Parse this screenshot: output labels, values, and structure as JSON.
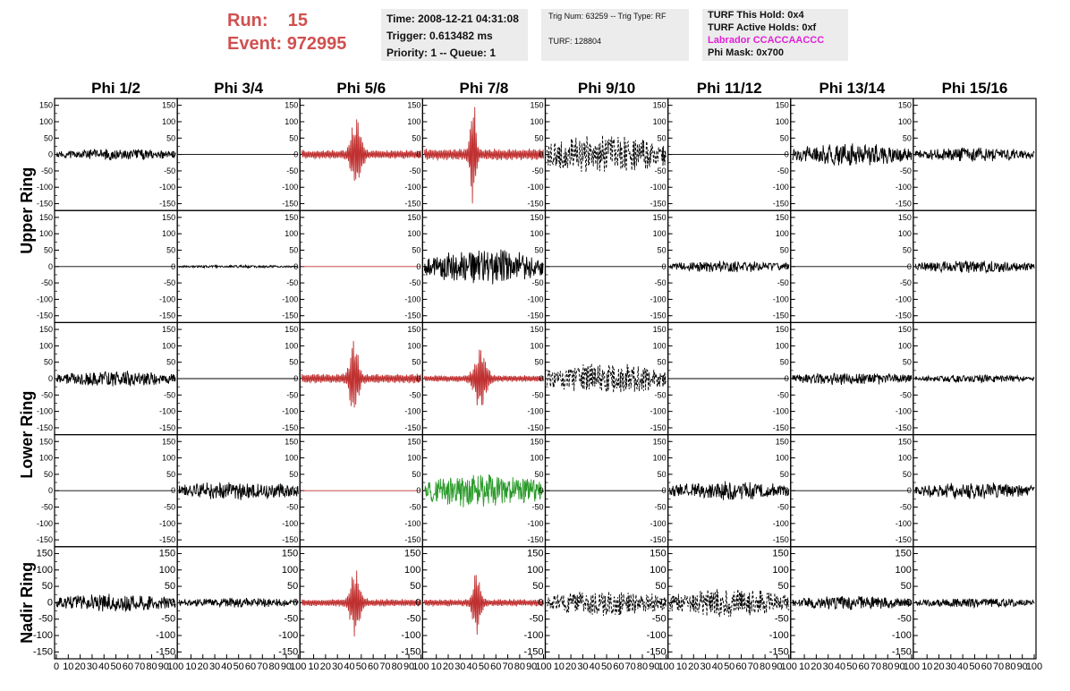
{
  "run": {
    "run_label": "Run:",
    "run_value": "15",
    "event_label": "Event:",
    "event_value": "972995"
  },
  "info1": {
    "time": "Time: 2008-12-21 04:31:08",
    "trigger": "Trigger: 0.613482 ms",
    "priority": "Priority: 1 -- Queue: 1"
  },
  "info2": {
    "trig": "Trig Num: 63259 -- Trig Type: RF",
    "turf": "TURF: 128804"
  },
  "info3": {
    "hold": "TURF This Hold: 0x4",
    "active": "TURF Active Holds: 0xf",
    "labrador": "Labrador CCACCAACCC",
    "phimask": "Phi Mask: 0x700"
  },
  "colors": {
    "red": "#c03030",
    "green": "#2a9a2a",
    "black": "#000000",
    "title_red": "#d05050",
    "magenta": "#e020d8",
    "info_bg": "#ececec"
  },
  "chart_data": {
    "type": "line",
    "columns": [
      "Phi 1/2",
      "Phi 3/4",
      "Phi 5/6",
      "Phi 7/8",
      "Phi 9/10",
      "Phi 11/12",
      "Phi 13/14",
      "Phi 15/16"
    ],
    "ring_labels": [
      {
        "text": "Upper Ring",
        "rows": [
          0,
          1
        ]
      },
      {
        "text": "Lower Ring",
        "rows": [
          2,
          3
        ]
      },
      {
        "text": "Nadir Ring",
        "rows": [
          4
        ]
      }
    ],
    "yticks": [
      -150,
      -100,
      -50,
      0,
      50,
      100,
      150
    ],
    "ytick_labels": [
      "-150",
      "-100",
      "-50",
      "0",
      "50",
      "100",
      "150"
    ],
    "ylim": [
      -160,
      160
    ],
    "xlim": [
      0,
      100
    ],
    "xtick_labels": [
      "0",
      "10",
      "20",
      "30",
      "40",
      "50",
      "60",
      "70",
      "80",
      "90",
      "100"
    ],
    "grid": false,
    "traces": [
      [
        {
          "color": "black",
          "style": "solid",
          "kind": "noise",
          "amp": 18,
          "seed": 11
        },
        {
          "color": "black",
          "style": "solid",
          "kind": "flat",
          "amp": 0,
          "seed": 12
        },
        {
          "color": "red",
          "style": "solid",
          "kind": "pulse",
          "amp": 120,
          "center": 46,
          "width": 5,
          "seed": 13
        },
        {
          "color": "red",
          "style": "solid",
          "kind": "pulse",
          "amp": 155,
          "center": 41,
          "width": 3,
          "seed": 14
        },
        {
          "color": "black",
          "style": "dashed",
          "kind": "noise",
          "amp": 60,
          "seed": 15
        },
        {
          "color": "black",
          "style": "solid",
          "kind": "flat",
          "amp": 0,
          "seed": 16
        },
        {
          "color": "black",
          "style": "solid",
          "kind": "noise",
          "amp": 35,
          "seed": 17
        },
        {
          "color": "black",
          "style": "solid",
          "kind": "noise",
          "amp": 22,
          "seed": 18
        }
      ],
      [
        {
          "color": "black",
          "style": "solid",
          "kind": "flat",
          "amp": 0,
          "seed": 21
        },
        {
          "color": "black",
          "style": "solid",
          "kind": "noise",
          "amp": 4,
          "seed": 22
        },
        {
          "color": "red",
          "style": "solid",
          "kind": "flat",
          "amp": 0,
          "seed": 23
        },
        {
          "color": "black",
          "style": "solid",
          "kind": "noise",
          "amp": 55,
          "seed": 24
        },
        {
          "color": "black",
          "style": "solid",
          "kind": "flat",
          "amp": 0,
          "seed": 25
        },
        {
          "color": "black",
          "style": "solid",
          "kind": "noise",
          "amp": 18,
          "seed": 26
        },
        {
          "color": "black",
          "style": "solid",
          "kind": "flat",
          "amp": 0,
          "seed": 27
        },
        {
          "color": "black",
          "style": "solid",
          "kind": "noise",
          "amp": 20,
          "seed": 28
        }
      ],
      [
        {
          "color": "black",
          "style": "solid",
          "kind": "noise",
          "amp": 25,
          "seed": 31
        },
        {
          "color": "black",
          "style": "solid",
          "kind": "flat",
          "amp": 0,
          "seed": 32
        },
        {
          "color": "red",
          "style": "solid",
          "kind": "pulse",
          "amp": 130,
          "center": 44,
          "width": 4,
          "seed": 33
        },
        {
          "color": "red",
          "style": "solid",
          "kind": "pulse",
          "amp": 90,
          "center": 47,
          "width": 6,
          "seed": 34
        },
        {
          "color": "black",
          "style": "dashed",
          "kind": "noise",
          "amp": 50,
          "seed": 35
        },
        {
          "color": "black",
          "style": "solid",
          "kind": "flat",
          "amp": 0,
          "seed": 36
        },
        {
          "color": "black",
          "style": "solid",
          "kind": "noise",
          "amp": 20,
          "seed": 37
        },
        {
          "color": "black",
          "style": "solid",
          "kind": "noise",
          "amp": 12,
          "seed": 38
        }
      ],
      [
        {
          "color": "black",
          "style": "solid",
          "kind": "flat",
          "amp": 0,
          "seed": 41
        },
        {
          "color": "black",
          "style": "solid",
          "kind": "noise",
          "amp": 30,
          "seed": 42
        },
        {
          "color": "red",
          "style": "solid",
          "kind": "flat",
          "amp": 0,
          "seed": 43
        },
        {
          "color": "green",
          "style": "solid",
          "kind": "noise",
          "amp": 55,
          "seed": 44
        },
        {
          "color": "black",
          "style": "solid",
          "kind": "flat",
          "amp": 0,
          "seed": 45
        },
        {
          "color": "black",
          "style": "solid",
          "kind": "noise",
          "amp": 30,
          "seed": 46
        },
        {
          "color": "black",
          "style": "solid",
          "kind": "flat",
          "amp": 0,
          "seed": 47
        },
        {
          "color": "black",
          "style": "solid",
          "kind": "noise",
          "amp": 28,
          "seed": 48
        }
      ],
      [
        {
          "color": "black",
          "style": "solid",
          "kind": "noise",
          "amp": 28,
          "seed": 51
        },
        {
          "color": "black",
          "style": "solid",
          "kind": "noise",
          "amp": 15,
          "seed": 52
        },
        {
          "color": "red",
          "style": "solid",
          "kind": "pulse",
          "amp": 100,
          "center": 45,
          "width": 5,
          "seed": 53
        },
        {
          "color": "red",
          "style": "solid",
          "kind": "pulse",
          "amp": 95,
          "center": 44,
          "width": 4,
          "seed": 54
        },
        {
          "color": "black",
          "style": "dashed",
          "kind": "noise",
          "amp": 40,
          "seed": 55
        },
        {
          "color": "black",
          "style": "dashed",
          "kind": "noise",
          "amp": 45,
          "seed": 56
        },
        {
          "color": "black",
          "style": "solid",
          "kind": "noise",
          "amp": 22,
          "seed": 57
        },
        {
          "color": "black",
          "style": "solid",
          "kind": "noise",
          "amp": 15,
          "seed": 58
        }
      ]
    ]
  }
}
